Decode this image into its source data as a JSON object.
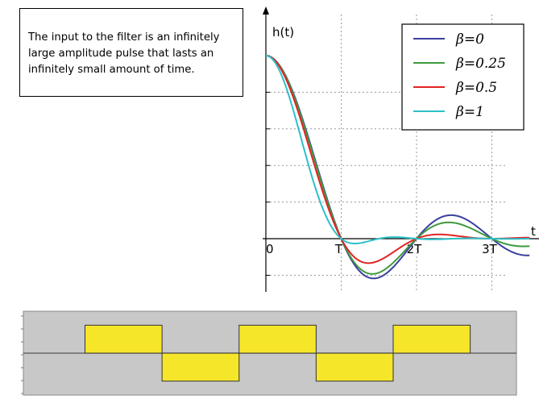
{
  "note": {
    "text": "The input to the filter is an infinitely large amplitude pulse that lasts an infinitely small amount of time."
  },
  "chart_data": [
    {
      "type": "line",
      "ylabel": "h(t)",
      "xlabel": "t",
      "x_ticks": [
        "0",
        "T",
        "2T",
        "3T"
      ],
      "xlim": [
        0,
        3.25
      ],
      "ylim": [
        -0.5,
        1.0
      ],
      "grid": true,
      "legend_position": "top-right",
      "series": [
        {
          "name": "β=0",
          "legend_label": "β=0",
          "beta": 0,
          "color": "#3a3fa0",
          "x": [
            0,
            0.25,
            0.5,
            0.75,
            1.0,
            1.25,
            1.5,
            1.75,
            2.0,
            2.25,
            2.5,
            2.75,
            3.0,
            3.25
          ],
          "y": [
            1.0,
            0.9,
            0.64,
            0.3,
            0.0,
            -0.18,
            -0.21,
            -0.13,
            0.0,
            0.1,
            0.13,
            0.08,
            0.0,
            -0.07
          ]
        },
        {
          "name": "β=0.25",
          "legend_label": "β=0.25",
          "beta": 0.25,
          "color": "#3f9a3f",
          "x": [
            0,
            0.25,
            0.5,
            0.75,
            1.0,
            1.25,
            1.5,
            1.75,
            2.0,
            2.25,
            2.5,
            2.75,
            3.0,
            3.25
          ],
          "y": [
            1.0,
            0.9,
            0.64,
            0.29,
            0.0,
            -0.17,
            -0.19,
            -0.11,
            0.0,
            0.07,
            0.08,
            0.04,
            0.0,
            -0.03
          ]
        },
        {
          "name": "β=0.5",
          "legend_label": "β=0.5",
          "beta": 0.5,
          "color": "#e02424",
          "x": [
            0,
            0.25,
            0.5,
            0.75,
            1.0,
            1.25,
            1.5,
            1.75,
            2.0,
            2.25,
            2.5,
            2.75,
            3.0,
            3.25
          ],
          "y": [
            1.0,
            0.89,
            0.62,
            0.28,
            0.0,
            -0.14,
            -0.14,
            -0.07,
            0.0,
            0.03,
            0.03,
            0.01,
            0.0,
            0.0
          ]
        },
        {
          "name": "β=1",
          "legend_label": "β=1",
          "beta": 1,
          "color": "#2cc0c8",
          "x": [
            0,
            0.25,
            0.5,
            0.75,
            1.0,
            1.25,
            1.5,
            1.75,
            2.0,
            2.25,
            2.5,
            2.75,
            3.0,
            3.25
          ],
          "y": [
            1.0,
            0.85,
            0.5,
            0.17,
            0.0,
            -0.03,
            -0.01,
            0.0,
            0.0,
            0.0,
            0.0,
            0.0,
            0.0,
            0.0
          ]
        }
      ]
    },
    {
      "type": "bar",
      "description": "square pulse train",
      "ylim": [
        -1.5,
        1.5
      ],
      "xlim": [
        0,
        6.4
      ],
      "fill_color": "#f5e62a",
      "background_color": "#c8c8c8",
      "segments": [
        {
          "x0": 0.8,
          "x1": 1.8,
          "value": 1
        },
        {
          "x0": 1.8,
          "x1": 2.8,
          "value": -1
        },
        {
          "x0": 2.8,
          "x1": 3.8,
          "value": 1
        },
        {
          "x0": 3.8,
          "x1": 4.8,
          "value": -1
        },
        {
          "x0": 4.8,
          "x1": 5.8,
          "value": 1
        }
      ]
    }
  ]
}
